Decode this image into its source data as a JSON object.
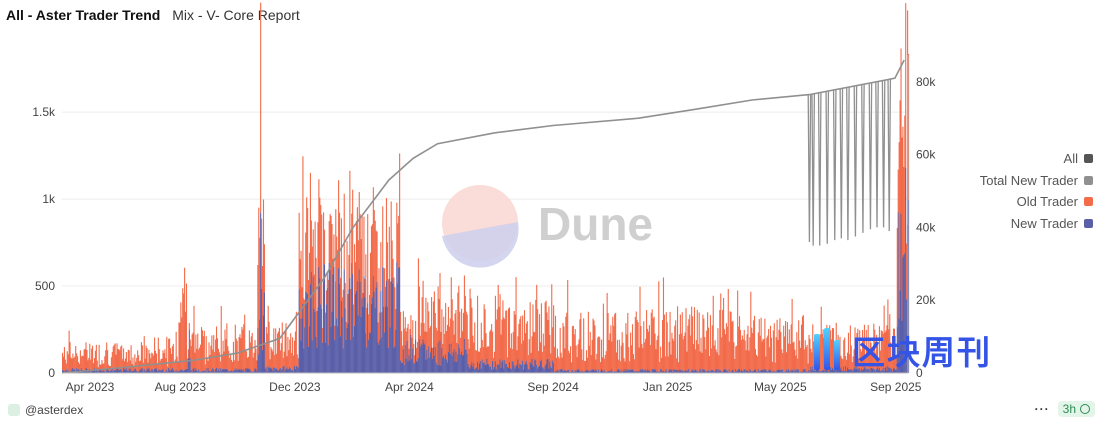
{
  "header": {
    "title": "All - Aster Trader Trend",
    "subtitle": "Mix - V- Core Report"
  },
  "footer": {
    "author": "@asterdex",
    "refresh": "3h"
  },
  "watermark": {
    "dune_text": "Dune",
    "site_text": "区块周刊"
  },
  "colors": {
    "all": "#555555",
    "total_new_trader": "#909090",
    "old_trader": "#f26b4a",
    "new_trader": "#5b5fa8"
  },
  "chart_data": {
    "type": "bar",
    "x_tick_labels": [
      "Apr 2023",
      "Aug 2023",
      "Dec 2023",
      "Apr 2024",
      "Sep 2024",
      "Jan 2025",
      "May 2025",
      "Sep 2025"
    ],
    "x_range": [
      "2023-03-28",
      "2025-09-14"
    ],
    "y_left": {
      "ticks": [
        0,
        500,
        1000,
        1500
      ],
      "tick_labels": [
        "0",
        "500",
        "1k",
        "1.5k"
      ],
      "range": [
        0,
        1800
      ]
    },
    "y_right": {
      "ticks": [
        0,
        20000,
        40000,
        60000,
        80000
      ],
      "tick_labels": [
        "0",
        "20k",
        "40k",
        "60k",
        "80k"
      ],
      "range": [
        0,
        86000
      ]
    },
    "grid": true,
    "legend_position": "right",
    "stacked": true,
    "series": [
      {
        "name": "All",
        "axis": "left",
        "kind": "legend-only"
      },
      {
        "name": "Total New Trader",
        "axis": "right",
        "kind": "line",
        "points": [
          [
            "2023-03-28",
            0
          ],
          [
            "2023-06-01",
            1500
          ],
          [
            "2023-08-15",
            3500
          ],
          [
            "2023-10-01",
            5500
          ],
          [
            "2023-11-15",
            9500
          ],
          [
            "2024-01-01",
            26000
          ],
          [
            "2024-02-01",
            40000
          ],
          [
            "2024-03-10",
            53000
          ],
          [
            "2024-04-05",
            59000
          ],
          [
            "2024-05-01",
            63000
          ],
          [
            "2024-07-01",
            66000
          ],
          [
            "2024-09-01",
            68000
          ],
          [
            "2024-12-01",
            70000
          ],
          [
            "2025-02-01",
            72500
          ],
          [
            "2025-04-01",
            75000
          ],
          [
            "2025-06-01",
            76500
          ],
          [
            "2025-08-31",
            81000
          ],
          [
            "2025-09-10",
            86000
          ]
        ],
        "dropouts": [
          [
            "2025-06-01",
            36000
          ],
          [
            "2025-06-05",
            35000
          ],
          [
            "2025-06-12",
            35000
          ],
          [
            "2025-06-20",
            35500
          ],
          [
            "2025-06-28",
            36500
          ],
          [
            "2025-07-05",
            37000
          ],
          [
            "2025-07-12",
            36500
          ],
          [
            "2025-07-20",
            37500
          ],
          [
            "2025-07-28",
            38500
          ],
          [
            "2025-08-05",
            39500
          ],
          [
            "2025-08-12",
            40000
          ],
          [
            "2025-08-19",
            40000
          ],
          [
            "2025-08-25",
            39000
          ]
        ]
      },
      {
        "name": "Old Trader",
        "axis": "left",
        "kind": "bar",
        "segments": [
          [
            "2023-03-28",
            "2023-06-30",
            90
          ],
          [
            "2023-07-01",
            "2023-07-28",
            110
          ],
          [
            "2023-07-29",
            "2023-08-06",
            380
          ],
          [
            "2023-08-07",
            "2023-10-20",
            150
          ],
          [
            "2023-10-21",
            "2023-10-28",
            550
          ],
          [
            "2023-10-29",
            "2023-12-03",
            160
          ],
          [
            "2023-12-04",
            "2023-12-31",
            330
          ],
          [
            "2024-01-01",
            "2024-02-25",
            300
          ],
          [
            "2024-02-26",
            "2024-03-20",
            280
          ],
          [
            "2024-03-21",
            "2024-04-05",
            140
          ],
          [
            "2024-04-06",
            "2024-08-31",
            220
          ],
          [
            "2024-09-01",
            "2024-12-31",
            200
          ],
          [
            "2025-01-01",
            "2025-03-15",
            210
          ],
          [
            "2025-03-16",
            "2025-05-31",
            180
          ],
          [
            "2025-06-01",
            "2025-08-31",
            150
          ],
          [
            "2025-09-01",
            "2025-09-14",
            750
          ]
        ],
        "peaks": [
          [
            "2023-08-03",
            470
          ],
          [
            "2023-10-25",
            1210
          ],
          [
            "2023-12-22",
            430
          ],
          [
            "2024-02-08",
            390
          ],
          [
            "2024-03-22",
            280
          ],
          [
            "2024-05-16",
            160
          ],
          [
            "2024-06-20",
            60
          ],
          [
            "2024-07-22",
            60
          ],
          [
            "2024-12-10",
            20
          ],
          [
            "2025-02-20",
            20
          ],
          [
            "2025-07-25",
            35
          ],
          [
            "2025-09-10",
            170
          ]
        ]
      },
      {
        "name": "New Trader",
        "axis": "left",
        "kind": "bar",
        "segments": [
          [
            "2023-03-28",
            "2023-10-20",
            18
          ],
          [
            "2023-10-21",
            "2023-10-28",
            300
          ],
          [
            "2023-10-29",
            "2023-12-03",
            25
          ],
          [
            "2023-12-04",
            "2024-03-20",
            390
          ],
          [
            "2024-03-21",
            "2024-05-31",
            120
          ],
          [
            "2024-06-01",
            "2024-08-31",
            50
          ],
          [
            "2024-09-01",
            "2025-05-31",
            15
          ],
          [
            "2025-06-01",
            "2025-08-31",
            25
          ],
          [
            "2025-09-01",
            "2025-09-14",
            650
          ]
        ],
        "peaks": [
          [
            "2023-08-10",
            250
          ],
          [
            "2023-10-25",
            920
          ],
          [
            "2023-12-20",
            450
          ],
          [
            "2024-02-10",
            430
          ],
          [
            "2024-04-02",
            220
          ],
          [
            "2025-09-11",
            1180
          ]
        ]
      }
    ]
  }
}
